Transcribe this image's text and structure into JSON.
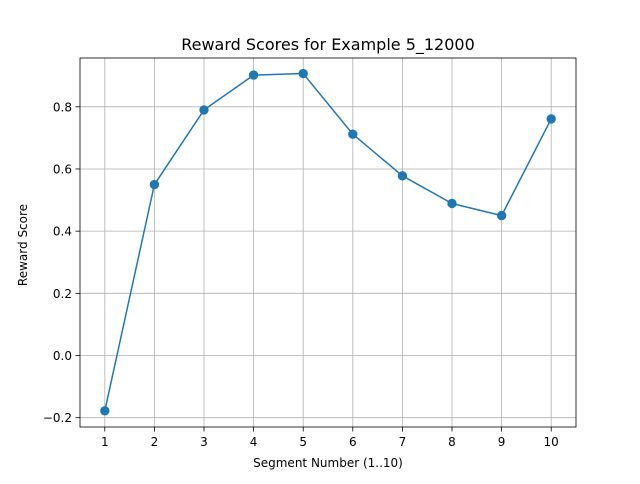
{
  "chart_data": {
    "type": "line",
    "title": "Reward Scores for Example 5_12000",
    "xlabel": "Segment Number (1..10)",
    "ylabel": "Reward Score",
    "x": [
      1,
      2,
      3,
      4,
      5,
      6,
      7,
      8,
      9,
      10
    ],
    "series": [
      {
        "values": [
          -0.178,
          0.55,
          0.79,
          0.902,
          0.907,
          0.712,
          0.578,
          0.489,
          0.45,
          0.761
        ]
      }
    ],
    "xlim": [
      0.5,
      10.5
    ],
    "ylim": [
      -0.23,
      0.957
    ],
    "xticks": [
      1,
      2,
      3,
      4,
      5,
      6,
      7,
      8,
      9,
      10
    ],
    "xtick_labels": [
      "1",
      "2",
      "3",
      "4",
      "5",
      "6",
      "7",
      "8",
      "9",
      "10"
    ],
    "yticks": [
      -0.2,
      0.0,
      0.2,
      0.4,
      0.6,
      0.8
    ],
    "ytick_labels": [
      "−0.2",
      "0.0",
      "0.2",
      "0.4",
      "0.6",
      "0.8"
    ],
    "grid": true,
    "line_color": "#1f77b4",
    "marker": "circle"
  }
}
